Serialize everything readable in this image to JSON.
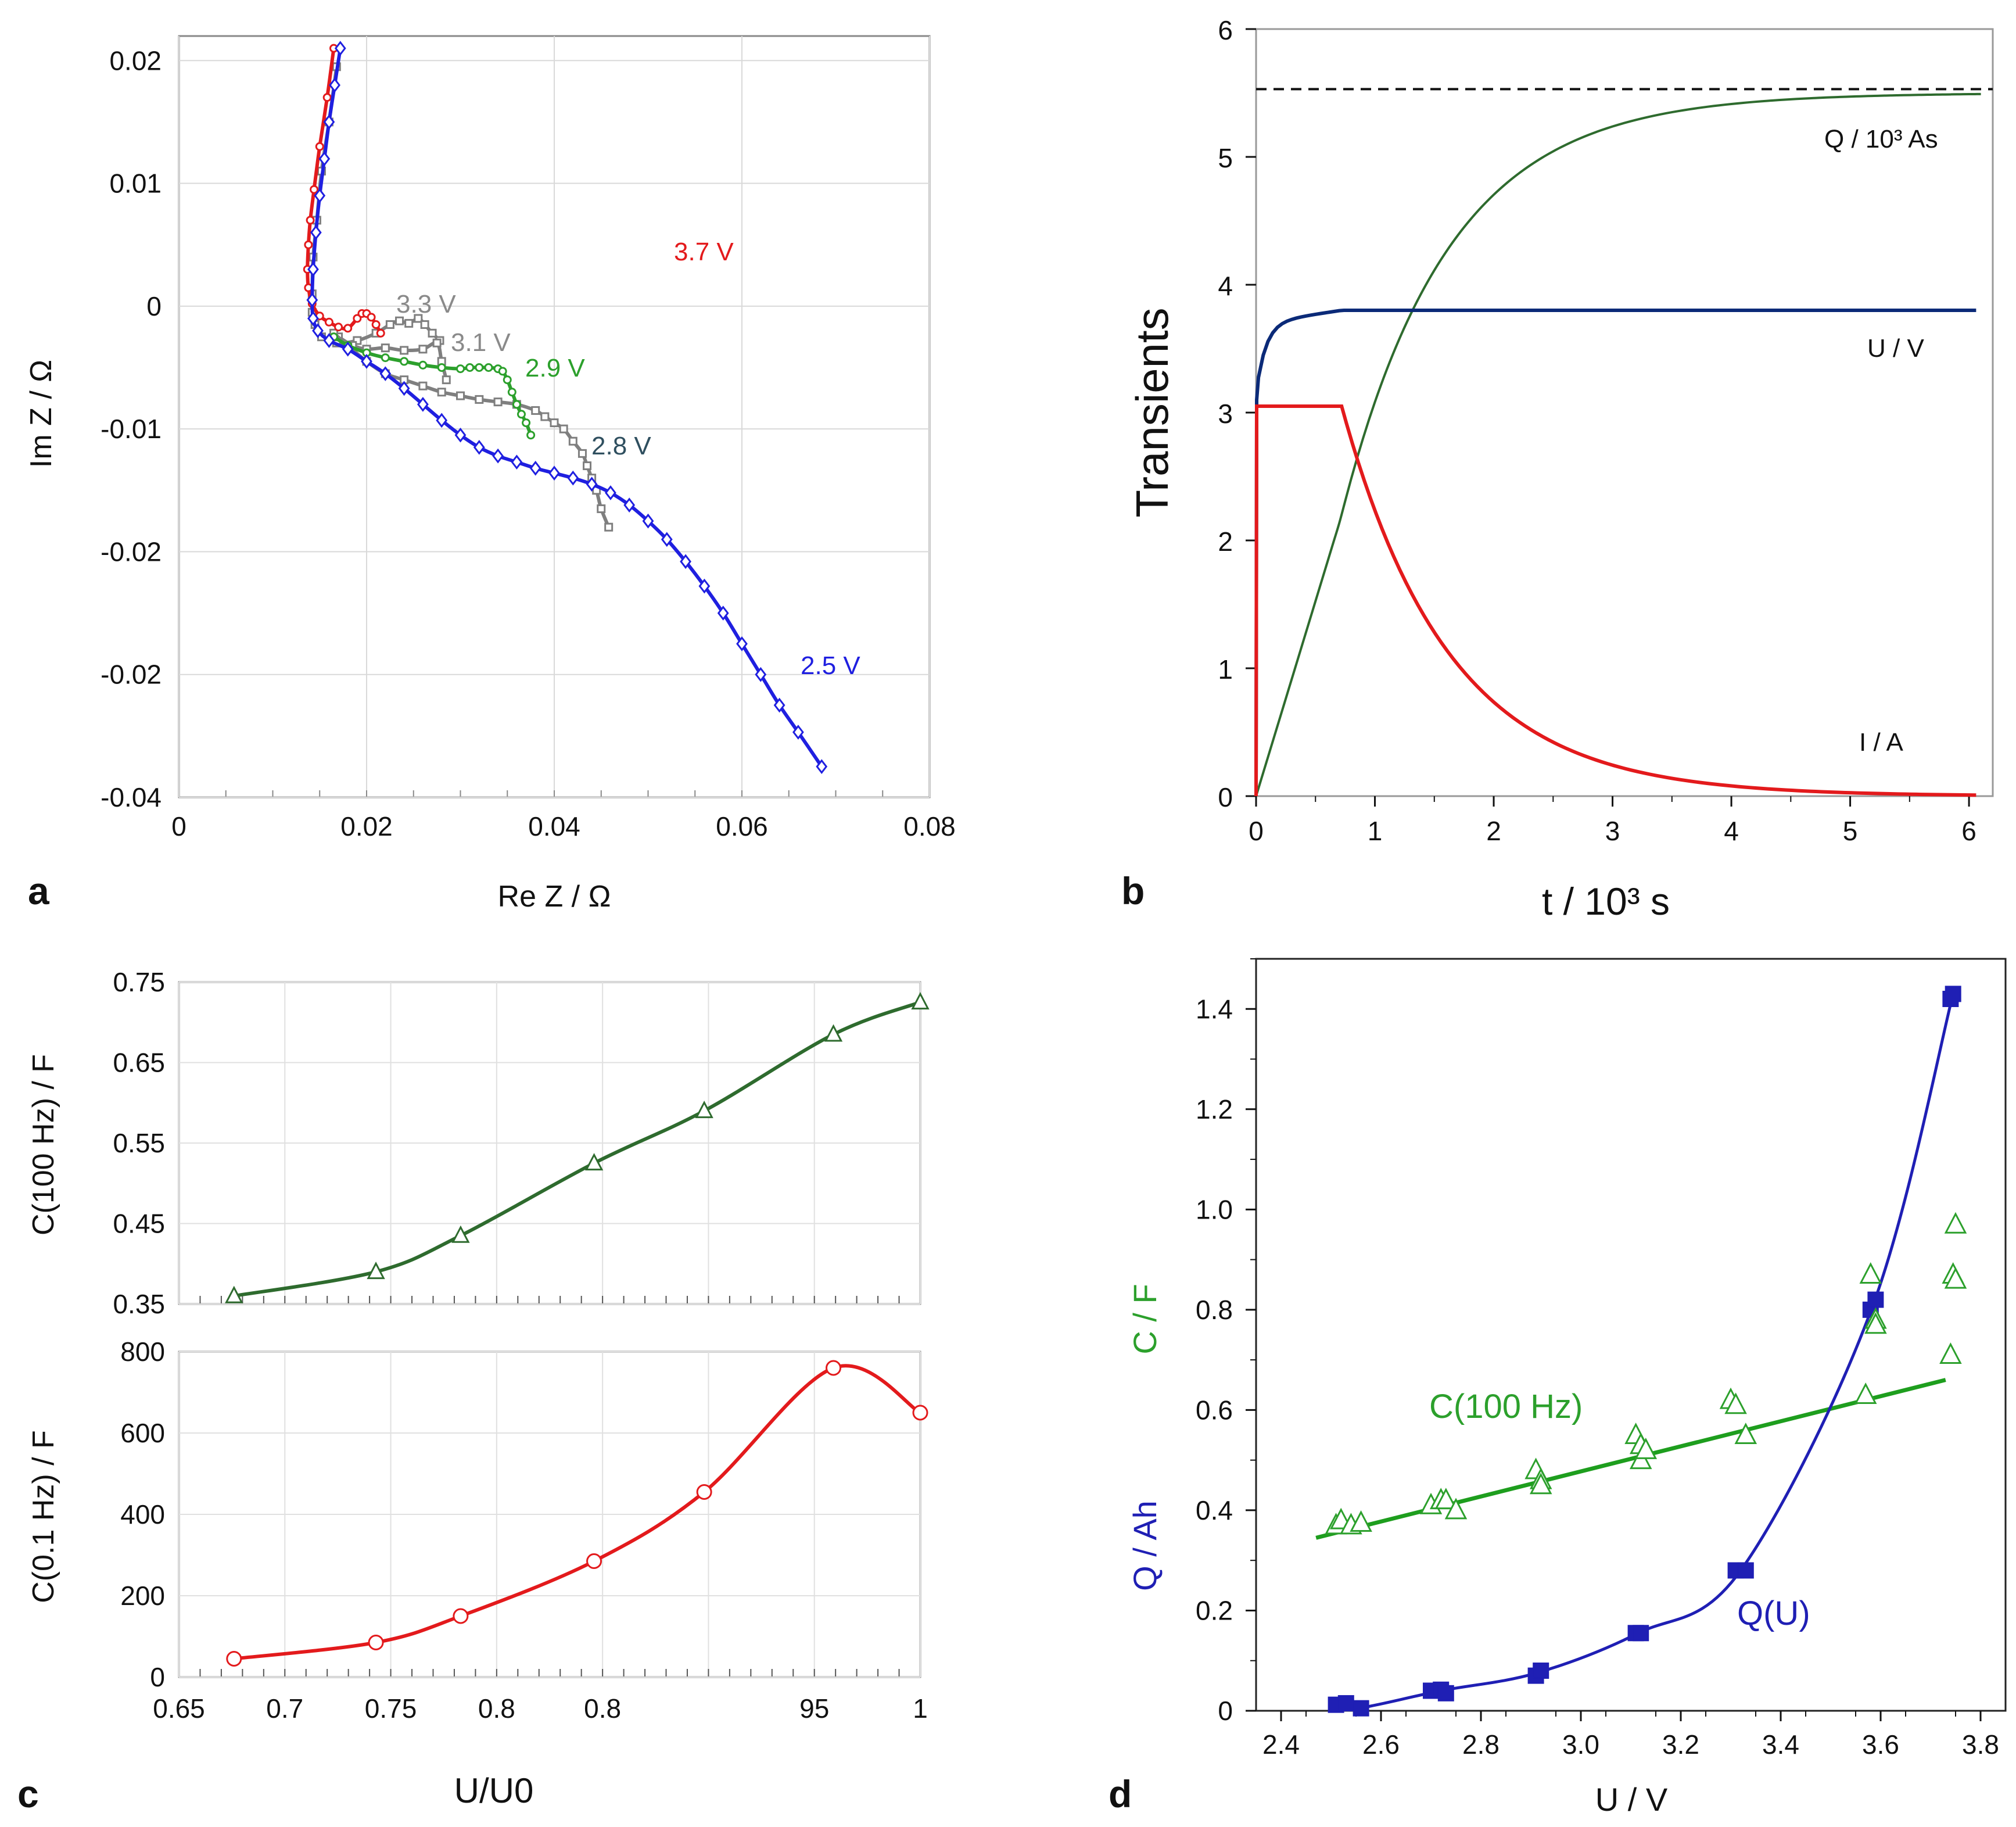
{
  "chart_data": [
    {
      "panel": "a",
      "type": "line",
      "xlabel": "Re Z / Ω",
      "ylabel": "Im Z / Ω",
      "xlim": [
        0,
        0.08
      ],
      "ylim": [
        -0.04,
        0.022
      ],
      "xticks": [
        "0",
        "0.02",
        "0.04",
        "0.06",
        "0.08"
      ],
      "yticks": [
        "0.02",
        "0.01",
        "0",
        "-0.01",
        "-0.02",
        "-0.02",
        "-0.04"
      ],
      "grid": true,
      "series": [
        {
          "name": "3.3 V",
          "color": "#7f7f7f",
          "marker": "square",
          "x": [
            0.0168,
            0.016,
            0.0152,
            0.0147,
            0.0143,
            0.0142,
            0.0142,
            0.0145,
            0.0152,
            0.0168,
            0.019,
            0.021,
            0.0225,
            0.0235,
            0.0245,
            0.0255,
            0.0262,
            0.027,
            0.0278
          ],
          "y": [
            0.0195,
            0.015,
            0.011,
            0.007,
            0.004,
            0.001,
            -0.0005,
            -0.0015,
            -0.0025,
            -0.003,
            -0.0028,
            -0.0022,
            -0.0015,
            -0.0012,
            -0.0014,
            -0.001,
            -0.0015,
            -0.0022,
            -0.0028
          ]
        },
        {
          "name": "3.1 V",
          "color": "#7f7f7f",
          "marker": "square",
          "x": [
            0.017,
            0.0185,
            0.02,
            0.022,
            0.024,
            0.026,
            0.0275,
            0.028,
            0.0285
          ],
          "y": [
            -0.0025,
            -0.0032,
            -0.0035,
            -0.0034,
            -0.0036,
            -0.0035,
            -0.003,
            -0.0045,
            -0.006
          ]
        },
        {
          "name": "2.8 V",
          "color": "#7f7f7f",
          "marker": "square",
          "x": [
            0.0165,
            0.018,
            0.02,
            0.022,
            0.024,
            0.026,
            0.028,
            0.03,
            0.032,
            0.034,
            0.036,
            0.038,
            0.039,
            0.04,
            0.041,
            0.042,
            0.043,
            0.0435,
            0.044,
            0.0445,
            0.045,
            0.0458
          ],
          "y": [
            -0.0022,
            -0.0032,
            -0.0045,
            -0.0055,
            -0.006,
            -0.0065,
            -0.007,
            -0.0073,
            -0.0076,
            -0.0078,
            -0.008,
            -0.0085,
            -0.009,
            -0.0095,
            -0.01,
            -0.011,
            -0.012,
            -0.013,
            -0.014,
            -0.015,
            -0.0165,
            -0.018
          ]
        },
        {
          "name": "2.9 V",
          "color": "#2ca02c",
          "marker": "circle",
          "x": [
            0.0165,
            0.018,
            0.02,
            0.022,
            0.024,
            0.026,
            0.028,
            0.03,
            0.031,
            0.032,
            0.033,
            0.034,
            0.0345,
            0.035,
            0.0355,
            0.036,
            0.0365,
            0.037,
            0.0375
          ],
          "y": [
            -0.0025,
            -0.0032,
            -0.0038,
            -0.0042,
            -0.0045,
            -0.0048,
            -0.005,
            -0.0051,
            -0.005,
            -0.005,
            -0.005,
            -0.0051,
            -0.0053,
            -0.006,
            -0.007,
            -0.008,
            -0.0088,
            -0.0095,
            -0.0105
          ]
        },
        {
          "name": "3.7 V",
          "color": "#e31a1c",
          "marker": "circle",
          "x": [
            0.0165,
            0.0158,
            0.015,
            0.0144,
            0.014,
            0.0138,
            0.0137,
            0.0138,
            0.0142,
            0.015,
            0.016,
            0.017,
            0.018,
            0.019,
            0.0195,
            0.02,
            0.0205,
            0.021,
            0.0215
          ],
          "y": [
            0.021,
            0.017,
            0.013,
            0.0095,
            0.007,
            0.005,
            0.003,
            0.0015,
            0.0002,
            -0.0008,
            -0.0013,
            -0.0017,
            -0.0018,
            -0.001,
            -0.0006,
            -0.0006,
            -0.0009,
            -0.0015,
            -0.0022
          ]
        },
        {
          "name": "2.5 V",
          "color": "#1f1fe0",
          "marker": "diamond",
          "x": [
            0.0172,
            0.0166,
            0.016,
            0.0155,
            0.015,
            0.0146,
            0.0143,
            0.0142,
            0.0143,
            0.0148,
            0.016,
            0.018,
            0.02,
            0.022,
            0.024,
            0.026,
            0.028,
            0.03,
            0.032,
            0.034,
            0.036,
            0.038,
            0.04,
            0.042,
            0.044,
            0.046,
            0.048,
            0.05,
            0.052,
            0.054,
            0.056,
            0.058,
            0.06,
            0.062,
            0.064,
            0.066,
            0.0685
          ],
          "y": [
            0.021,
            0.018,
            0.015,
            0.012,
            0.009,
            0.006,
            0.003,
            0.0005,
            -0.001,
            -0.002,
            -0.0028,
            -0.0035,
            -0.0045,
            -0.0055,
            -0.0067,
            -0.008,
            -0.0093,
            -0.0105,
            -0.0115,
            -0.0122,
            -0.0127,
            -0.0132,
            -0.0136,
            -0.014,
            -0.0145,
            -0.0152,
            -0.0162,
            -0.0175,
            -0.019,
            -0.0208,
            -0.0228,
            -0.025,
            -0.0275,
            -0.03,
            -0.0325,
            -0.0347,
            -0.0375
          ]
        }
      ],
      "annotations": [
        "3.7 V",
        "3.3 V",
        "3.1 V",
        "2.9 V",
        "2.8 V",
        "2.5 V"
      ],
      "panel_label": "a"
    },
    {
      "panel": "b",
      "type": "line",
      "xlabel": "t / 10³ s",
      "ylabel": "Transients",
      "xlim": [
        0,
        6.2
      ],
      "ylim": [
        0,
        6
      ],
      "xticks": [
        "0",
        "1",
        "2",
        "3",
        "4",
        "5",
        "6"
      ],
      "yticks": [
        "0",
        "1",
        "2",
        "3",
        "4",
        "5",
        "6"
      ],
      "reference_line": {
        "y": 5.53,
        "style": "dashed"
      },
      "series": [
        {
          "name": "Q / 10³ As",
          "color": "#2e6b2e"
        },
        {
          "name": "U / V",
          "color": "#0b2a78"
        },
        {
          "name": "I / A",
          "color": "#e31a1c"
        }
      ],
      "annotations": [
        "Q / 10³ As",
        "U / V",
        "I / A"
      ],
      "panel_label": "b"
    },
    {
      "panel": "c-top",
      "type": "line",
      "ylabel": "C(100 Hz) / F",
      "xlim": [
        0.65,
        1.0
      ],
      "ylim": [
        0.35,
        0.75
      ],
      "yticks": [
        "0.75",
        "0.65",
        "0.55",
        "0.45",
        "0.35"
      ],
      "x": [
        0.676,
        0.743,
        0.783,
        0.846,
        0.898,
        0.959,
        1.0
      ],
      "values": [
        0.36,
        0.39,
        0.435,
        0.525,
        0.59,
        0.685,
        0.725
      ],
      "color": "#2e6b2e",
      "marker": "triangle"
    },
    {
      "panel": "c-bottom",
      "type": "line",
      "xlabel": "U/U0",
      "ylabel": "C(0.1 Hz) / F",
      "xlim": [
        0.65,
        1.0
      ],
      "ylim": [
        0,
        800
      ],
      "xticks": [
        "0.65",
        "0.7",
        "0.75",
        "0.8",
        "0.8",
        "95",
        "1"
      ],
      "yticks": [
        "800",
        "600",
        "400",
        "200",
        "0"
      ],
      "x": [
        0.676,
        0.743,
        0.783,
        0.846,
        0.898,
        0.959,
        1.0
      ],
      "values": [
        45,
        85,
        150,
        285,
        455,
        760,
        650
      ],
      "color": "#e31a1c",
      "marker": "circle",
      "panel_label": "c"
    },
    {
      "panel": "d",
      "type": "scatter",
      "xlabel": "U / V",
      "ylabel_upper": "C / F",
      "ylabel_lower": "Q / Ah",
      "xlim": [
        2.35,
        3.85
      ],
      "ylim": [
        0,
        1.5
      ],
      "xticks": [
        "2.4",
        "2.6",
        "2.8",
        "3.0",
        "3.2",
        "3.4",
        "3.6",
        "3.8"
      ],
      "yticks": [
        "0",
        "0.2",
        "0.4",
        "0.6",
        "0.8",
        "1.0",
        "1.2",
        "1.4"
      ],
      "series": [
        {
          "name": "Q(U)",
          "color": "#1f1fb4",
          "marker": "square",
          "x": [
            2.51,
            2.53,
            2.56,
            2.7,
            2.72,
            2.73,
            2.91,
            2.92,
            3.11,
            3.12,
            3.31,
            3.33,
            3.58,
            3.59,
            3.74,
            3.745
          ],
          "y": [
            0.012,
            0.015,
            0.005,
            0.04,
            0.042,
            0.035,
            0.07,
            0.08,
            0.155,
            0.155,
            0.28,
            0.28,
            0.8,
            0.82,
            1.42,
            1.43
          ]
        },
        {
          "name": "C(100 Hz)",
          "color": "#2ca02c",
          "marker": "triangle",
          "x": [
            2.51,
            2.52,
            2.54,
            2.56,
            2.7,
            2.72,
            2.73,
            2.75,
            2.91,
            2.92,
            2.92,
            3.11,
            3.12,
            3.12,
            3.13,
            3.3,
            3.31,
            3.33,
            3.57,
            3.58,
            3.59,
            3.59,
            3.74,
            3.745,
            3.75,
            3.75
          ],
          "y": [
            0.37,
            0.38,
            0.37,
            0.375,
            0.41,
            0.42,
            0.42,
            0.4,
            0.48,
            0.46,
            0.45,
            0.55,
            0.53,
            0.5,
            0.52,
            0.62,
            0.61,
            0.55,
            0.63,
            0.87,
            0.78,
            0.77,
            0.71,
            0.87,
            0.86,
            0.97
          ]
        }
      ],
      "fit_lines": [
        {
          "name": "C(100 Hz)",
          "x": [
            2.47,
            3.73
          ],
          "y": [
            0.345,
            0.66
          ]
        }
      ],
      "annotations": [
        "C(100 Hz)",
        "Q(U)"
      ],
      "panel_label": "d"
    }
  ]
}
